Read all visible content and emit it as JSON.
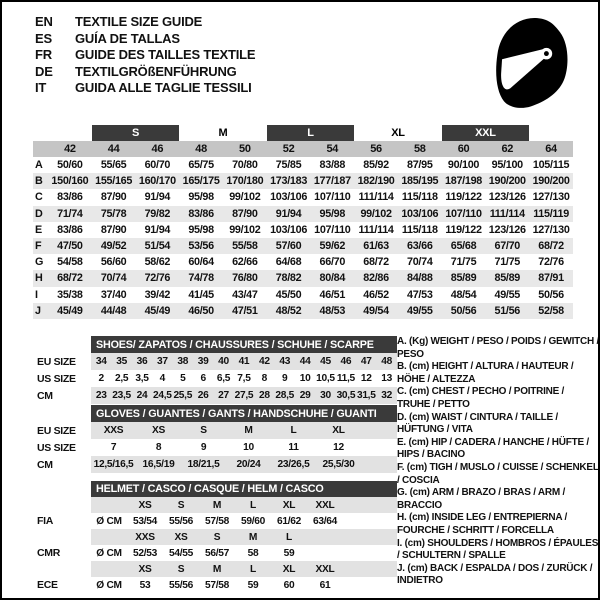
{
  "colors": {
    "dark_bar": "#3a3a3a",
    "size_band": "#c5c5c5",
    "row_stripe": "#e8e8e8",
    "icon": "#000000"
  },
  "languages": [
    {
      "code": "EN",
      "title": "TEXTILE SIZE GUIDE"
    },
    {
      "code": "ES",
      "title": "GUÍA DE TALLAS"
    },
    {
      "code": "FR",
      "title": "GUIDE DES TAILLES TEXTILE"
    },
    {
      "code": "DE",
      "title": "TEXTILGRÖßENFÜHRUNG"
    },
    {
      "code": "IT",
      "title": "GUIDA ALLE TAGLIE TESSILI"
    }
  ],
  "helmet_icon": "racing-helmet-icon",
  "textile_table": {
    "size_groups": [
      {
        "label": "",
        "span": 1,
        "boxed": false
      },
      {
        "label": "S",
        "span": 2,
        "boxed": true
      },
      {
        "label": "M",
        "span": 2,
        "boxed": false
      },
      {
        "label": "L",
        "span": 2,
        "boxed": true
      },
      {
        "label": "XL",
        "span": 2,
        "boxed": false
      },
      {
        "label": "XXL",
        "span": 2,
        "boxed": true
      },
      {
        "label": "",
        "span": 1,
        "boxed": false
      }
    ],
    "numeric_sizes": [
      "42",
      "44",
      "46",
      "48",
      "50",
      "52",
      "54",
      "56",
      "58",
      "60",
      "62",
      "64"
    ],
    "rows": [
      {
        "letter": "A",
        "values": [
          "50/60",
          "55/65",
          "60/70",
          "65/75",
          "70/80",
          "75/85",
          "83/88",
          "85/92",
          "87/95",
          "90/100",
          "95/100",
          "105/115"
        ]
      },
      {
        "letter": "B",
        "values": [
          "150/160",
          "155/165",
          "160/170",
          "165/175",
          "170/180",
          "173/183",
          "177/187",
          "182/190",
          "185/195",
          "187/198",
          "190/200",
          "190/200"
        ]
      },
      {
        "letter": "C",
        "values": [
          "83/86",
          "87/90",
          "91/94",
          "95/98",
          "99/102",
          "103/106",
          "107/110",
          "111/114",
          "115/118",
          "119/122",
          "123/126",
          "127/130"
        ]
      },
      {
        "letter": "D",
        "values": [
          "71/74",
          "75/78",
          "79/82",
          "83/86",
          "87/90",
          "91/94",
          "95/98",
          "99/102",
          "103/106",
          "107/110",
          "111/114",
          "115/119"
        ]
      },
      {
        "letter": "E",
        "values": [
          "83/86",
          "87/90",
          "91/94",
          "95/98",
          "99/102",
          "103/106",
          "107/110",
          "111/114",
          "115/118",
          "119/122",
          "123/126",
          "127/130"
        ]
      },
      {
        "letter": "F",
        "values": [
          "47/50",
          "49/52",
          "51/54",
          "53/56",
          "55/58",
          "57/60",
          "59/62",
          "61/63",
          "63/66",
          "65/68",
          "67/70",
          "68/72"
        ]
      },
      {
        "letter": "G",
        "values": [
          "54/58",
          "56/60",
          "58/62",
          "60/64",
          "62/66",
          "64/68",
          "66/70",
          "68/72",
          "70/74",
          "71/75",
          "71/75",
          "72/76"
        ]
      },
      {
        "letter": "H",
        "values": [
          "68/72",
          "70/74",
          "72/76",
          "74/78",
          "76/80",
          "78/82",
          "80/84",
          "82/86",
          "84/88",
          "85/89",
          "85/89",
          "87/91"
        ]
      },
      {
        "letter": "I",
        "values": [
          "35/38",
          "37/40",
          "39/42",
          "41/45",
          "43/47",
          "45/50",
          "46/51",
          "46/52",
          "47/53",
          "48/54",
          "49/55",
          "50/56"
        ]
      },
      {
        "letter": "J",
        "values": [
          "45/49",
          "44/48",
          "45/49",
          "46/50",
          "47/51",
          "48/52",
          "48/53",
          "49/54",
          "49/55",
          "50/56",
          "51/56",
          "52/58"
        ]
      }
    ]
  },
  "shoes_table": {
    "header": "SHOES/ ZAPATOS / CHAUSSURES / SCHUHE / SCARPE",
    "rows": [
      {
        "label": "EU SIZE",
        "striped": true,
        "values": [
          "34",
          "35",
          "36",
          "37",
          "38",
          "39",
          "40",
          "41",
          "42",
          "43",
          "44",
          "45",
          "46",
          "47",
          "48"
        ]
      },
      {
        "label": "US SIZE",
        "striped": false,
        "values": [
          "2",
          "2,5",
          "3,5",
          "4",
          "5",
          "6",
          "6,5",
          "7,5",
          "8",
          "9",
          "10",
          "10,5",
          "11,5",
          "12",
          "13"
        ]
      },
      {
        "label": "CM",
        "striped": true,
        "values": [
          "23",
          "23,5",
          "24",
          "24,5",
          "25,5",
          "26",
          "27",
          "27,5",
          "28",
          "28,5",
          "29",
          "30",
          "30,5",
          "31,5",
          "32"
        ]
      }
    ]
  },
  "gloves_table": {
    "header": "GLOVES / GUANTES / GANTS / HANDSCHUHE / GUANTI",
    "rows": [
      {
        "label": "EU SIZE",
        "striped": true,
        "values": [
          "XXS",
          "XS",
          "S",
          "M",
          "L",
          "XL"
        ]
      },
      {
        "label": "US SIZE",
        "striped": false,
        "values": [
          "7",
          "8",
          "9",
          "10",
          "11",
          "12"
        ]
      },
      {
        "label": "CM",
        "striped": true,
        "values": [
          "12,5/16,5",
          "16,5/19",
          "18/21,5",
          "20/24",
          "23/26,5",
          "25,5/30"
        ]
      }
    ]
  },
  "helmet_table": {
    "header": "HELMET / CASCO / CASQUE / HELM / CASCO",
    "rows": [
      {
        "label": "",
        "unit": "",
        "striped": true,
        "values": [
          "XS",
          "S",
          "M",
          "L",
          "XL",
          "XXL"
        ]
      },
      {
        "label": "FIA",
        "unit": "Ø CM",
        "striped": false,
        "values": [
          "53/54",
          "55/56",
          "57/58",
          "59/60",
          "61/62",
          "63/64"
        ]
      },
      {
        "label": "",
        "unit": "",
        "striped": true,
        "values": [
          "XXS",
          "XS",
          "S",
          "M",
          "L",
          ""
        ]
      },
      {
        "label": "CMR",
        "unit": "Ø CM",
        "striped": false,
        "values": [
          "52/53",
          "54/55",
          "56/57",
          "58",
          "59",
          ""
        ]
      },
      {
        "label": "",
        "unit": "",
        "striped": true,
        "values": [
          "XS",
          "S",
          "M",
          "L",
          "XL",
          "XXL"
        ]
      },
      {
        "label": "ECE",
        "unit": "Ø CM",
        "striped": false,
        "values": [
          "53",
          "55/56",
          "57/58",
          "59",
          "60",
          "61"
        ]
      }
    ]
  },
  "legend": {
    "items": [
      "A. (Kg) WEIGHT / PESO / POIDS / GEWITCH / PESO",
      "B. (cm) HEIGHT / ALTURA / HAUTEUR / HÖHE / ALTEZZA",
      "C. (cm) CHEST / PECHO / POITRINE / TRUHE / PETTO",
      "D. (cm) WAIST / CINTURA / TAILLE / HÜFTUNG / VITA",
      "E. (cm) HIP / CADERA / HANCHE / HÜFTE / HIPS / BACINO",
      "F. (cm) TIGH / MUSLO / CUISSE / SCHENKEL / COSCIA",
      "G. (cm) ARM / BRAZO / BRAS / ARM / BRACCIO",
      "H. (cm) INSIDE LEG / ENTREPIERNA / FOURCHE / SCHRITT / FORCELLA",
      "I. (cm) SHOULDERS / HOMBROS / ÉPAULES / SCHULTERN / SPALLE",
      "J. (cm) BACK / ESPALDA / DOS / ZURÜCK / INDIETRO"
    ]
  }
}
